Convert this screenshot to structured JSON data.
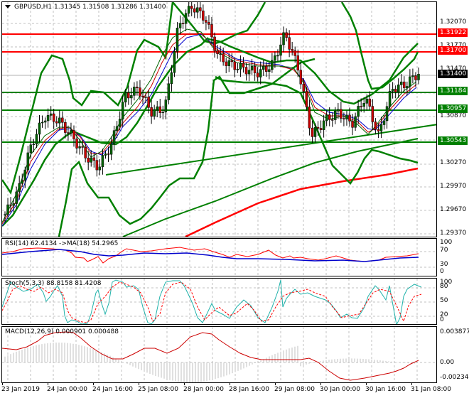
{
  "header": {
    "symbol": "GBPUSD,H1",
    "open": "1.31345",
    "high": "1.31508",
    "low": "1.31286",
    "close": "1.31400",
    "title_text": "GBPUSD,H1  1.31345 1.31508 1.31286 1.31400"
  },
  "price_axis": {
    "ticks": [
      "1.32070",
      "1.31770",
      "1.31470",
      "1.30870",
      "1.30270",
      "1.29970",
      "1.29670",
      "1.29370"
    ],
    "tags": [
      {
        "value": "1.31922",
        "color": "#ff0000"
      },
      {
        "value": "1.31700",
        "color": "#ff0000"
      },
      {
        "value": "1.31400",
        "color": "#000000"
      },
      {
        "value": "1.31184",
        "color": "#008000"
      },
      {
        "value": "1.30957",
        "color": "#008000"
      },
      {
        "value": "1.30543",
        "color": "#008000"
      }
    ]
  },
  "rsi": {
    "title": "RSI(14) 62.4134  ->MA(18) 54.2965",
    "ticks": [
      "100",
      "70",
      "30",
      "0"
    ]
  },
  "stoch": {
    "title": "Stoch(5,3,3) 88.8158 81.4208",
    "ticks": [
      "100",
      "80",
      "50",
      "20",
      "0"
    ]
  },
  "macd": {
    "title": "MACD(12,26,9) 0.000901 0.000488",
    "ticks": [
      "0.003877",
      "0.00",
      "-0.002344"
    ]
  },
  "time_axis": {
    "labels": [
      "23 Jan 2019",
      "24 Jan 00:00",
      "24 Jan 16:00",
      "25 Jan 08:00",
      "28 Jan 00:00",
      "28 Jan 16:00",
      "29 Jan 08:00",
      "30 Jan 00:00",
      "30 Jan 16:00",
      "31 Jan 08:00"
    ]
  },
  "colors": {
    "bull_candle": "#006400",
    "bear_candle": "#cc0000",
    "bollinger": "#008000",
    "resistance": "#ff0000",
    "support": "#008000",
    "rsi_line": "#ff0000",
    "rsi_ma": "#0000cc",
    "stoch_main": "#20b2aa",
    "stoch_signal": "#ff0000",
    "macd_hist": "#c0c0c0",
    "macd_signal": "#cc0000"
  },
  "chart_data": [
    {
      "type": "candlestick",
      "title": "GBPUSD,H1",
      "ohlc_last": {
        "open": 1.31345,
        "high": 1.31508,
        "low": 1.31286,
        "close": 1.314
      },
      "ylim": [
        1.293,
        1.323
      ],
      "yticks": [
        1.2937,
        1.2967,
        1.2997,
        1.3027,
        1.3087,
        1.3147,
        1.3177,
        1.3207
      ],
      "horizontal_levels": [
        {
          "value": 1.31922,
          "color": "red",
          "label": "resistance"
        },
        {
          "value": 1.317,
          "color": "red",
          "label": "resistance"
        },
        {
          "value": 1.31184,
          "color": "green",
          "label": "support"
        },
        {
          "value": 1.30957,
          "color": "green",
          "label": "support"
        },
        {
          "value": 1.30543,
          "color": "green",
          "label": "support"
        }
      ],
      "current_price": 1.314,
      "approx_close_path": [
        1.296,
        1.299,
        1.305,
        1.3085,
        1.308,
        1.306,
        1.3035,
        1.302,
        1.305,
        1.311,
        1.312,
        1.309,
        1.3095,
        1.32,
        1.3225,
        1.321,
        1.316,
        1.315,
        1.3145,
        1.314,
        1.315,
        1.319,
        1.3145,
        1.306,
        1.308,
        1.309,
        1.3075,
        1.311,
        1.306,
        1.312,
        1.3125,
        1.314
      ],
      "xlabels": [
        "23 Jan 2019",
        "24 Jan 00:00",
        "24 Jan 16:00",
        "25 Jan 08:00",
        "28 Jan 00:00",
        "28 Jan 16:00",
        "29 Jan 08:00",
        "30 Jan 00:00",
        "30 Jan 16:00",
        "31 Jan 08:00"
      ],
      "overlays": [
        "Bollinger Bands (green)",
        "Moving averages (green/red/blue)",
        "Trend lines (green)",
        "Long MA (red)"
      ]
    },
    {
      "type": "line",
      "title": "RSI(14) 62.4134 ->MA(18) 54.2965",
      "ylim": [
        0,
        100
      ],
      "yticks": [
        0,
        30,
        70,
        100
      ],
      "series": [
        {
          "name": "RSI(14)",
          "last": 62.4134,
          "values": [
            58,
            62,
            63,
            60,
            47,
            44,
            50,
            48,
            52,
            55,
            48,
            50,
            58,
            60,
            57,
            52,
            50,
            48,
            52,
            54,
            50,
            56,
            45,
            40,
            42,
            46,
            44,
            48,
            42,
            58,
            60,
            62
          ]
        },
        {
          "name": "MA(18)",
          "last": 54.2965,
          "values": [
            55,
            58,
            60,
            59,
            56,
            52,
            50,
            51,
            52,
            54,
            54,
            53,
            54,
            56,
            57,
            56,
            54,
            53,
            53,
            53,
            53,
            54,
            50,
            47,
            46,
            46,
            46,
            46,
            46,
            50,
            52,
            54
          ]
        }
      ]
    },
    {
      "type": "line",
      "title": "Stoch(5,3,3) 88.8158 81.4208",
      "ylim": [
        0,
        100
      ],
      "yticks": [
        0,
        20,
        50,
        80,
        100
      ],
      "series": [
        {
          "name": "%K",
          "last": 88.8158,
          "values": [
            45,
            95,
            60,
            98,
            5,
            10,
            72,
            30,
            100,
            90,
            50,
            0,
            100,
            90,
            40,
            15,
            40,
            45,
            15,
            35,
            100,
            50,
            80,
            0,
            15,
            100,
            60,
            85,
            0,
            5,
            95,
            89
          ]
        },
        {
          "name": "%D",
          "last": 81.4208,
          "values": [
            40,
            85,
            70,
            90,
            20,
            10,
            55,
            40,
            85,
            95,
            65,
            10,
            85,
            95,
            55,
            25,
            35,
            45,
            25,
            30,
            80,
            60,
            75,
            15,
            10,
            85,
            70,
            80,
            10,
            5,
            85,
            81
          ]
        }
      ]
    },
    {
      "type": "bar",
      "title": "MACD(12,26,9) 0.000901 0.000488",
      "ylim": [
        -0.002344,
        0.003877
      ],
      "yticks": [
        -0.002344,
        0.0,
        0.003877
      ],
      "series": [
        {
          "name": "MACD histogram",
          "last": 0.000901
        },
        {
          "name": "Signal",
          "last": 0.000488
        }
      ]
    }
  ]
}
